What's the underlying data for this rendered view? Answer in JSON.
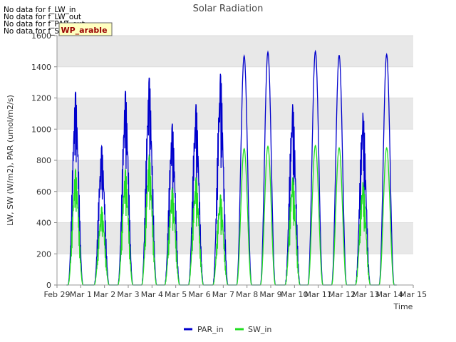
{
  "chart_data": {
    "type": "line",
    "title": "Solar Radiation",
    "xlabel": "Time",
    "ylabel": "LW, SW (W/m2), PAR (umol/m2/s)",
    "ylim": [
      0,
      1600
    ],
    "yticks": [
      0,
      200,
      400,
      600,
      800,
      1000,
      1200,
      1400,
      1600
    ],
    "xlim": [
      0,
      15
    ],
    "xtick_labels": [
      "Feb 29",
      "Mar 1",
      "Mar 2",
      "Mar 3",
      "Mar 4",
      "Mar 5",
      "Mar 6",
      "Mar 7",
      "Mar 8",
      "Mar 9",
      "Mar 10",
      "Mar 11",
      "Mar 12",
      "Mar 13",
      "Mar 14",
      "Mar 15"
    ],
    "grid": true,
    "legend_position": "bottom-center",
    "no_data_messages": [
      "No data for f_LW_in",
      "No data for f_LW_out",
      "No data for f_PAR_out",
      "No data for f_SW_out"
    ],
    "annotation_box": "WP_arable",
    "colors": {
      "PAR_in": "#0000cc",
      "SW_in": "#22dd22",
      "band": "#e8e8e8",
      "grid": "#dddddd"
    },
    "series": [
      {
        "name": "PAR_in",
        "daily_peaks": [
          1240,
          890,
          1245,
          1330,
          1035,
          1160,
          1355,
          1470,
          1495,
          1160,
          1500,
          1475,
          1105,
          1480
        ],
        "day_x": [
          0.78,
          1.88,
          2.88,
          3.88,
          4.85,
          5.85,
          6.88,
          7.88,
          8.88,
          9.92,
          10.88,
          11.88,
          12.88,
          13.88
        ]
      },
      {
        "name": "SW_in",
        "daily_peaks": [
          740,
          500,
          740,
          830,
          620,
          690,
          580,
          875,
          890,
          690,
          895,
          880,
          660,
          880
        ],
        "day_x": [
          0.78,
          1.88,
          2.88,
          3.88,
          4.85,
          5.85,
          6.88,
          7.88,
          8.88,
          9.92,
          10.88,
          11.88,
          12.88,
          13.88
        ]
      }
    ]
  }
}
